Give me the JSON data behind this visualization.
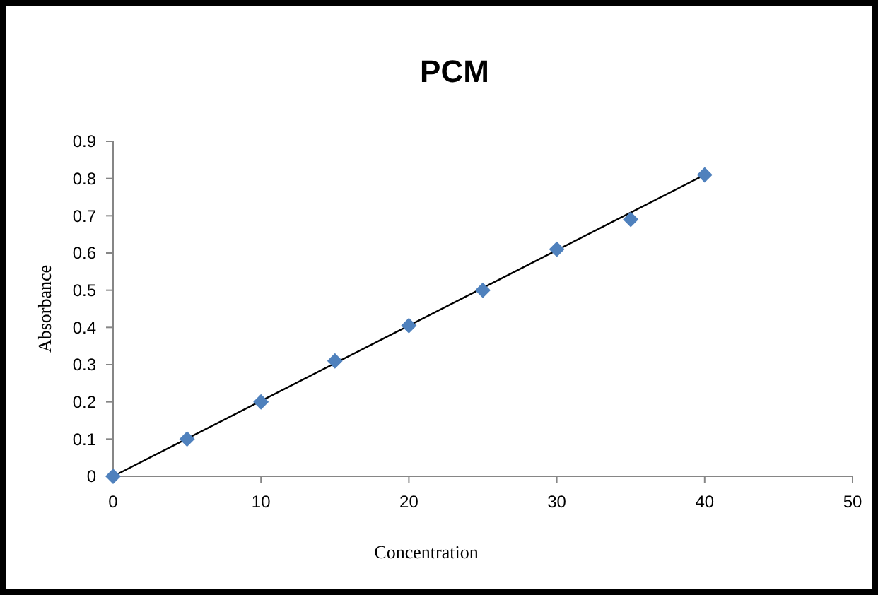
{
  "chart_data": {
    "type": "scatter",
    "title": "PCM",
    "xlabel": "Concentration",
    "ylabel": "Absorbance",
    "x": [
      0,
      5,
      10,
      15,
      20,
      25,
      30,
      35,
      40
    ],
    "series": [
      {
        "color": "#4f81bd",
        "values": [
          0,
          0.1,
          0.2,
          0.31,
          0.405,
          0.5,
          0.61,
          0.69,
          0.81
        ],
        "marker": "diamond"
      },
      {
        "type": "line",
        "color": "#000000",
        "x": [
          0,
          40
        ],
        "values": [
          0,
          0.81
        ],
        "marker": "none",
        "line_style": "solid"
      }
    ],
    "xlim": [
      0,
      50
    ],
    "xticks": [
      0,
      10,
      20,
      30,
      40,
      50
    ],
    "ylim": [
      0,
      0.9
    ],
    "yticks": [
      0,
      0.1,
      0.2,
      0.3,
      0.4,
      0.5,
      0.6,
      0.7,
      0.8,
      0.9
    ],
    "grid": false
  }
}
